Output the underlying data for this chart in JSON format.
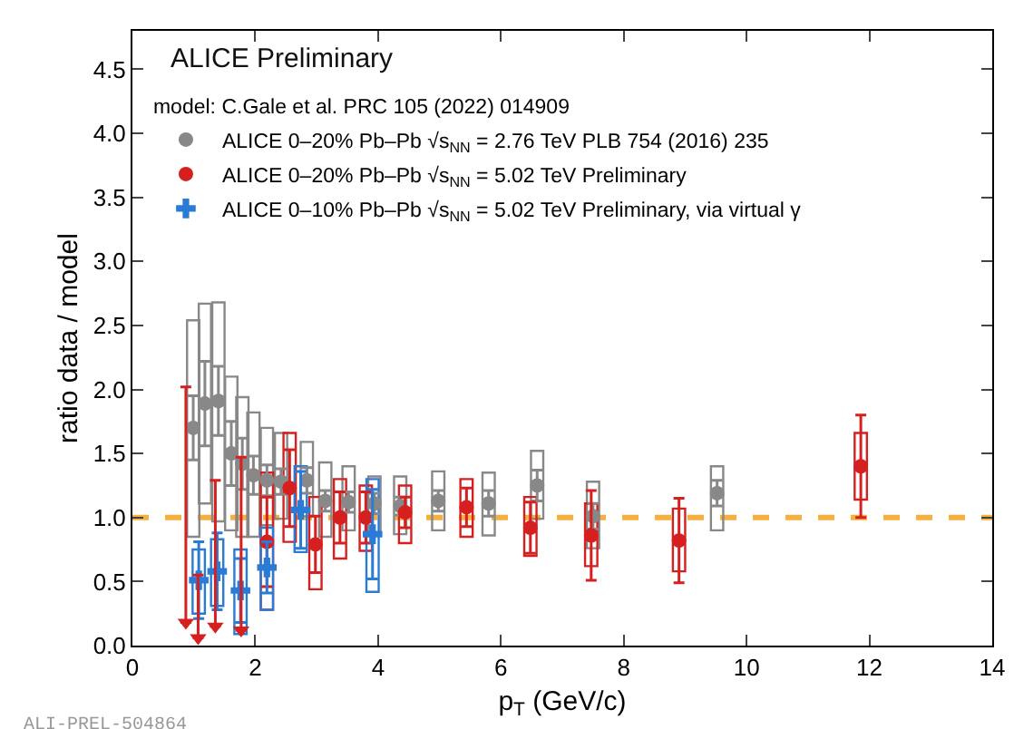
{
  "chart_data": {
    "type": "scatter",
    "xlabel": "p$_{T}$ (GeV/c)",
    "ylabel": "ratio data / model",
    "legend_title": "model: C.Gale et al. PRC 105 (2022) 014909",
    "annotations": [
      "ALICE Preliminary",
      "ALI-PREL-504864"
    ],
    "xlim": [
      0,
      14
    ],
    "xticks": [
      0,
      2,
      4,
      6,
      8,
      10,
      12,
      14
    ],
    "ylim": [
      0,
      4.8
    ],
    "yticks": [
      {
        "value": 0,
        "label": "0.0"
      },
      0.5,
      {
        "value": 1,
        "label": "1.0"
      },
      1.5,
      {
        "value": 2,
        "label": "2.0"
      },
      2.5,
      {
        "value": 3,
        "label": "3.0"
      },
      3.5,
      {
        "value": 4,
        "label": "4.0"
      },
      4.5
    ],
    "grid": false,
    "legend": "top left",
    "ref_lines": [
      {
        "axis": "y",
        "value": 1,
        "color": "#f5b041",
        "line_style": "dashed"
      }
    ],
    "series": [
      {
        "type": "bar",
        "color": "#888888",
        "x": [
          0.99,
          1.18,
          1.4,
          1.61,
          1.79,
          1.97,
          2.19,
          2.42,
          2.84,
          3.14,
          3.52,
          3.94,
          4.36,
          4.98,
          5.8,
          6.59,
          7.5,
          9.52
        ],
        "base": [
          0.85,
          1.11,
          0.97,
          0.9,
          0.85,
          0.85,
          0.94,
          0.99,
          1.01,
          0.85,
          0.9,
          0.87,
          0.87,
          0.9,
          0.86,
          0.99,
          0.76,
          0.9
        ],
        "values": [
          1.69,
          1.56,
          1.71,
          1.2,
          1.09,
          0.97,
          0.76,
          0.67,
          0.58,
          0.58,
          0.5,
          0.45,
          0.45,
          0.46,
          0.49,
          0.53,
          0.52,
          0.5
        ]
      },
      {
        "type": "bar",
        "color": "#d62020",
        "x": [
          2.19,
          2.56,
          2.98,
          3.38,
          3.8,
          4.44,
          5.44,
          6.48,
          7.47,
          8.9,
          11.86
        ],
        "base": [
          0.28,
          0.81,
          0.44,
          0.68,
          0.74,
          0.8,
          0.85,
          0.7,
          0.62,
          0.58,
          1.14
        ],
        "values": [
          1.07,
          0.85,
          0.72,
          0.62,
          0.51,
          0.45,
          0.45,
          0.46,
          0.49,
          0.49,
          0.52
        ]
      },
      {
        "type": "bar",
        "color": "#2a7bd6",
        "x": [
          1.08,
          1.38,
          1.76,
          2.19,
          2.74,
          3.91
        ],
        "base": [
          0.25,
          0.31,
          0.09,
          0.28,
          0.73,
          0.42
        ],
        "values": [
          0.5,
          0.52,
          0.66,
          0.64,
          0.67,
          0.88
        ]
      },
      {
        "marker": "circle",
        "name": "ALICE 0–20% Pb–Pb √s$_{NN}$ = 2.76 TeV PLB 754 (2016) 235",
        "color": "#888888",
        "x": [
          0.99,
          1.18,
          1.4,
          1.61,
          1.79,
          1.97,
          2.19,
          2.42,
          2.84,
          3.14,
          3.52,
          3.94,
          4.36,
          4.98,
          5.8,
          6.59,
          7.5,
          9.52
        ],
        "values": [
          1.7,
          1.89,
          1.91,
          1.5,
          1.42,
          1.33,
          1.29,
          1.28,
          1.29,
          1.13,
          1.12,
          1.11,
          1.09,
          1.13,
          1.11,
          1.25,
          1.01,
          1.19
        ],
        "errors": [
          0.25,
          0.33,
          0.27,
          0.25,
          0.2,
          0.15,
          0.12,
          0.1,
          0.1,
          0.08,
          0.08,
          0.08,
          0.07,
          0.08,
          0.1,
          0.12,
          0.1,
          0.1
        ]
      },
      {
        "marker": "circle",
        "name": "ALICE 0–20% Pb–Pb √s$_{NN}$ = 5.02 TeV Preliminary",
        "color": "#d62020",
        "x": [
          2.19,
          2.56,
          2.98,
          3.38,
          3.8,
          4.44,
          5.44,
          6.48,
          7.47,
          8.9,
          11.86
        ],
        "values": [
          0.81,
          1.23,
          0.79,
          1.0,
          1.0,
          1.04,
          1.08,
          0.92,
          0.86,
          0.82,
          1.4
        ],
        "errors": [
          0.35,
          0.3,
          0.22,
          0.2,
          0.2,
          0.12,
          0.15,
          0.2,
          0.35,
          0.33,
          0.4
        ]
      },
      {
        "marker": "cross",
        "name": "ALICE 0–10% Pb–Pb √s$_{NN}$ = 5.02 TeV Preliminary, via virtual γ",
        "color": "#2a7bd6",
        "x": [
          1.08,
          1.38,
          1.76,
          2.19,
          2.74,
          3.91
        ],
        "values": [
          0.51,
          0.58,
          0.43,
          0.61,
          1.06,
          0.87
        ],
        "errors": [
          0.3,
          0.3,
          0.25,
          0.2,
          0.3,
          0.35
        ]
      },
      {
        "marker": "triangle",
        "color": "#d62020",
        "x": [
          0.87,
          1.07,
          1.35,
          1.77
        ],
        "values": [
          0.18,
          0.06,
          0.15,
          0.12
        ],
        "errors": [
          [
            0.18,
            2.02
          ],
          [
            0.06,
            0.55
          ],
          [
            0.15,
            1.29
          ],
          [
            0.12,
            1.47
          ]
        ]
      }
    ]
  }
}
